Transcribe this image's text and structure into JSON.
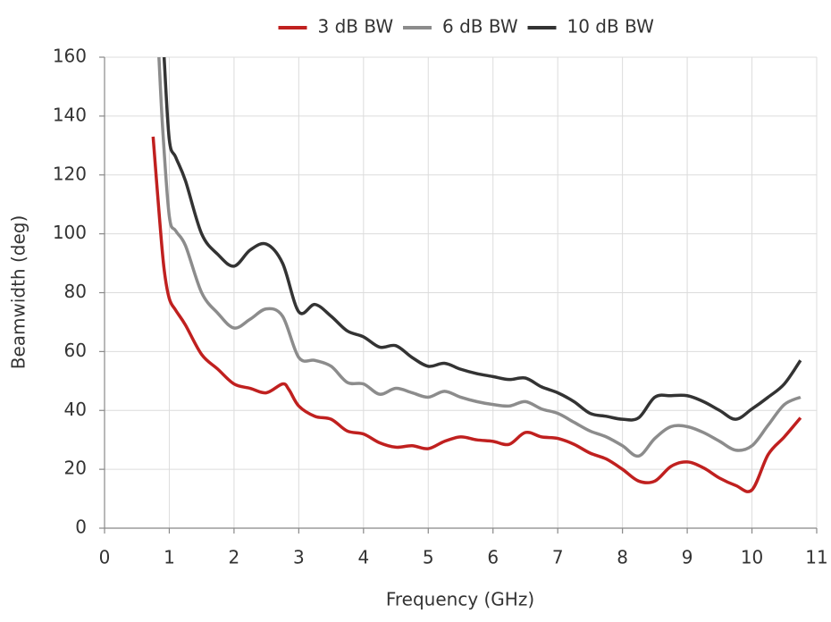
{
  "chart_data": {
    "type": "line",
    "xlabel": "Frequency (GHz)",
    "ylabel": "Beamwidth (deg)",
    "xlim": [
      0,
      11
    ],
    "ylim": [
      0,
      160
    ],
    "xticks": [
      0,
      1,
      2,
      3,
      4,
      5,
      6,
      7,
      8,
      9,
      10,
      11
    ],
    "yticks": [
      0,
      20,
      40,
      60,
      80,
      100,
      120,
      140,
      160
    ],
    "grid": true,
    "legend": "top",
    "series": [
      {
        "name": "3 dB BW",
        "color": "#c0201f",
        "x": [
          0.75,
          0.85,
          0.92,
          1.0,
          1.1,
          1.25,
          1.5,
          1.75,
          2.0,
          2.25,
          2.5,
          2.75,
          2.85,
          3.0,
          3.25,
          3.5,
          3.75,
          4.0,
          4.25,
          4.5,
          4.75,
          5.0,
          5.25,
          5.5,
          5.75,
          6.0,
          6.25,
          6.5,
          6.75,
          7.0,
          7.25,
          7.5,
          7.75,
          8.0,
          8.25,
          8.5,
          8.75,
          9.0,
          9.25,
          9.5,
          9.75,
          10.0,
          10.25,
          10.5,
          10.75
        ],
        "values": [
          133,
          105,
          88,
          78,
          74,
          69,
          59,
          54,
          49,
          47.5,
          46,
          49,
          47,
          41.5,
          38,
          37,
          33,
          32,
          29,
          27.5,
          28,
          27,
          29.5,
          31,
          30,
          29.5,
          28.5,
          32.5,
          31,
          30.5,
          28.5,
          25.5,
          23.5,
          20,
          16,
          16,
          21,
          22.5,
          20.5,
          17,
          14.5,
          13,
          25,
          31,
          37.5
        ]
      },
      {
        "name": "6 dB BW",
        "color": "#8c8c8c",
        "x": [
          0.84,
          0.9,
          1.0,
          1.1,
          1.25,
          1.5,
          1.75,
          2.0,
          2.25,
          2.5,
          2.75,
          3.0,
          3.25,
          3.5,
          3.75,
          4.0,
          4.25,
          4.5,
          4.75,
          5.0,
          5.25,
          5.5,
          5.75,
          6.0,
          6.25,
          6.5,
          6.75,
          7.0,
          7.25,
          7.5,
          7.75,
          8.0,
          8.25,
          8.5,
          8.75,
          9.0,
          9.25,
          9.5,
          9.75,
          10.0,
          10.25,
          10.5,
          10.75
        ],
        "values": [
          160,
          135,
          106,
          101,
          96,
          80,
          73,
          68,
          71,
          74.5,
          72,
          58,
          57,
          55,
          49.5,
          49,
          45.5,
          47.5,
          46,
          44.5,
          46.5,
          44.5,
          43,
          42,
          41.5,
          43,
          40.5,
          39,
          36,
          33,
          31,
          28,
          24.5,
          30.5,
          34.5,
          34.5,
          32.5,
          29.5,
          26.5,
          28,
          35,
          42,
          44.5
        ]
      },
      {
        "name": "10 dB BW",
        "color": "#333333",
        "x": [
          0.92,
          1.0,
          1.1,
          1.25,
          1.5,
          1.75,
          2.0,
          2.25,
          2.5,
          2.75,
          3.0,
          3.25,
          3.5,
          3.75,
          4.0,
          4.25,
          4.5,
          4.75,
          5.0,
          5.25,
          5.5,
          5.75,
          6.0,
          6.25,
          6.5,
          6.75,
          7.0,
          7.25,
          7.5,
          7.75,
          8.0,
          8.25,
          8.5,
          8.75,
          9.0,
          9.25,
          9.5,
          9.75,
          10.0,
          10.25,
          10.5,
          10.75
        ],
        "values": [
          160,
          132,
          126,
          118,
          100,
          93,
          89,
          94.5,
          96.5,
          90,
          73.5,
          76,
          72,
          67,
          65,
          61.5,
          62,
          58,
          55,
          56,
          54,
          52.5,
          51.5,
          50.5,
          51,
          48,
          46,
          43,
          39,
          38,
          37,
          37.5,
          44.5,
          45,
          45,
          43,
          40,
          37,
          40.5,
          44.5,
          49,
          57
        ]
      }
    ]
  }
}
